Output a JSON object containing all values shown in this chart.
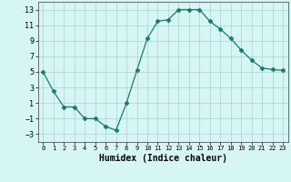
{
  "x": [
    0,
    1,
    2,
    3,
    4,
    5,
    6,
    7,
    8,
    9,
    10,
    11,
    12,
    13,
    14,
    15,
    16,
    17,
    18,
    19,
    20,
    21,
    22,
    23
  ],
  "y": [
    5,
    2.5,
    0.5,
    0.5,
    -1,
    -1,
    -2,
    -2.5,
    1,
    5.2,
    9.3,
    11.5,
    11.7,
    13,
    13,
    13,
    11.5,
    10.5,
    9.3,
    7.8,
    6.5,
    5.5,
    5.3,
    5.2
  ],
  "line_color": "#1a7a6a",
  "marker": "D",
  "marker_size": 2.5,
  "bg_color": "#d6f5f5",
  "grid_color": "#b0d8d8",
  "xlabel": "Humidex (Indice chaleur)",
  "xlabel_fontsize": 7,
  "ylabel_ticks": [
    -3,
    -1,
    1,
    3,
    5,
    7,
    9,
    11,
    13
  ],
  "xlim": [
    -0.5,
    23.5
  ],
  "ylim": [
    -4,
    14
  ]
}
